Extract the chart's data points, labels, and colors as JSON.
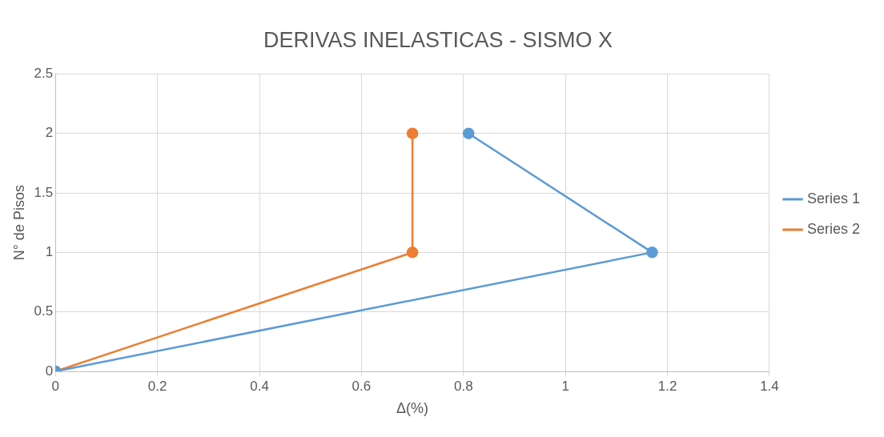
{
  "chart_data": {
    "type": "line",
    "title": "DERIVAS INELASTICAS - SISMO X",
    "xlabel": "Δ(%)",
    "ylabel": "N° de Pisos",
    "series": [
      {
        "name": "Series 1",
        "color": "#5b9bd5",
        "x": [
          0,
          1.17,
          0.81
        ],
        "values": [
          0,
          1,
          2
        ]
      },
      {
        "name": "Series 2",
        "color": "#ed7d31",
        "x": [
          0,
          0.7,
          0.7
        ],
        "values": [
          0,
          1,
          2
        ]
      }
    ],
    "xlim": [
      0,
      1.4
    ],
    "xticks": [
      0,
      0.2,
      0.4,
      0.6,
      0.8,
      1,
      1.2,
      1.4
    ],
    "ylim": [
      0,
      2.5
    ],
    "yticks": [
      0,
      0.5,
      1,
      1.5,
      2,
      2.5
    ],
    "grid": true,
    "legend": "right",
    "marker": "circle",
    "line_style": "solid"
  }
}
